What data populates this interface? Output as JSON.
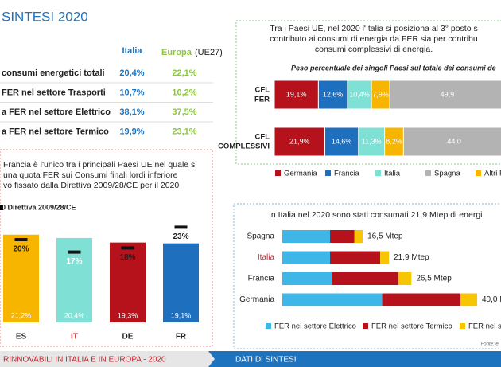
{
  "header": {
    "title": "SINTESI 2020"
  },
  "table": {
    "columns": [
      "Italia",
      "Europa",
      "(UE27)"
    ],
    "rows": [
      [
        "consumi energetici totali",
        "20,4%",
        "22,1%"
      ],
      [
        "FER nel settore Trasporti",
        "10,7%",
        "10,2%"
      ],
      [
        "a FER nel settore Elettrico",
        "38,1%",
        "37,5%"
      ],
      [
        "a FER nel settore Termico",
        "19,9%",
        "23,1%"
      ]
    ]
  },
  "chart_data": [
    {
      "type": "bar",
      "text": [
        "Francia è l'unico tra i principali Paesi UE nel quale si",
        "una quota FER sui Consumi finali lordi inferiore",
        "vo fissato dalla Direttiva 2009/28/CE per il 2020"
      ],
      "legend": "0 Direttiva 2009/28/CE",
      "categories": [
        "ES",
        "IT",
        "DE",
        "FR"
      ],
      "colors": [
        "#f7b500",
        "#7fe0d5",
        "#b5121b",
        "#1f6fbf"
      ],
      "values": [
        21.2,
        20.4,
        19.3,
        19.1
      ],
      "value_labels": [
        "21,2%",
        "20,4%",
        "19,3%",
        "19,1%"
      ],
      "targets": [
        20,
        17,
        18,
        23
      ],
      "target_labels": [
        "20%",
        "17%",
        "18%",
        "23%"
      ],
      "ylim": [
        0,
        25
      ]
    },
    {
      "type": "stacked-hbar",
      "title": [
        "Tra i Paesi UE, nel 2020 l'Italia si posiziona al 3° posto s",
        "contributo ai consumi di energia da FER sia per contribu",
        "consumi complessivi di energia."
      ],
      "subtitle": "Peso percentuale dei singoli Paesi sul totale dei consumi de",
      "categories": [
        [
          "CFL",
          "FER"
        ],
        [
          "CFL",
          "COMPLESSIVI"
        ]
      ],
      "xlim": [
        0,
        100
      ],
      "series": [
        {
          "name": "Germania",
          "color": "#b5121b",
          "values": [
            19.1,
            21.9
          ],
          "value_labels": [
            "19,1%",
            "21,9%"
          ]
        },
        {
          "name": "Francia",
          "color": "#1f6fbf",
          "values": [
            12.6,
            14.6
          ],
          "value_labels": [
            "12,6%",
            "14,6%"
          ]
        },
        {
          "name": "Italia",
          "color": "#7fe0d5",
          "values": [
            10.4,
            11.3
          ],
          "value_labels": [
            "10,4%",
            "11,3%"
          ]
        },
        {
          "name": "Altri P",
          "color": "#f7b500",
          "values": [
            7.9,
            8.2
          ],
          "value_labels": [
            "7,9%",
            "8,2%"
          ]
        },
        {
          "name": "Spagna",
          "color": "#b3b3b3",
          "values": [
            49.9,
            44
          ],
          "value_labels": [
            "49,9",
            "44,0"
          ]
        }
      ],
      "legend_order": [
        0,
        1,
        2,
        4,
        3
      ]
    },
    {
      "type": "stacked-hbar",
      "title": "In Italia nel 2020 sono stati consumati 21,9 Mtep di energi",
      "categories": [
        "Spagna",
        "Italia",
        "Francia",
        "Germania"
      ],
      "totals": [
        "16,5 Mtep",
        "21,9 Mtep",
        "26,5 Mtep",
        "40,0 Mtep"
      ],
      "xlim": [
        0,
        40
      ],
      "series": [
        {
          "name": "FER nel settore Elettrico",
          "color": "#3fb6e8",
          "values": [
            9.8,
            9.8,
            10.2,
            20.5
          ]
        },
        {
          "name": "FER nel settore Termico",
          "color": "#b5121b",
          "values": [
            5.0,
            10.3,
            13.6,
            16.1
          ]
        },
        {
          "name": "FER nel se",
          "color": "#f7c600",
          "values": [
            1.7,
            1.8,
            2.7,
            3.4
          ]
        }
      ],
      "source": "Fonte: el"
    }
  ],
  "footer": {
    "left": "RINNOVABILI IN ITALIA E IN EUROPA - 2020",
    "right": "DATI DI SINTESI"
  }
}
